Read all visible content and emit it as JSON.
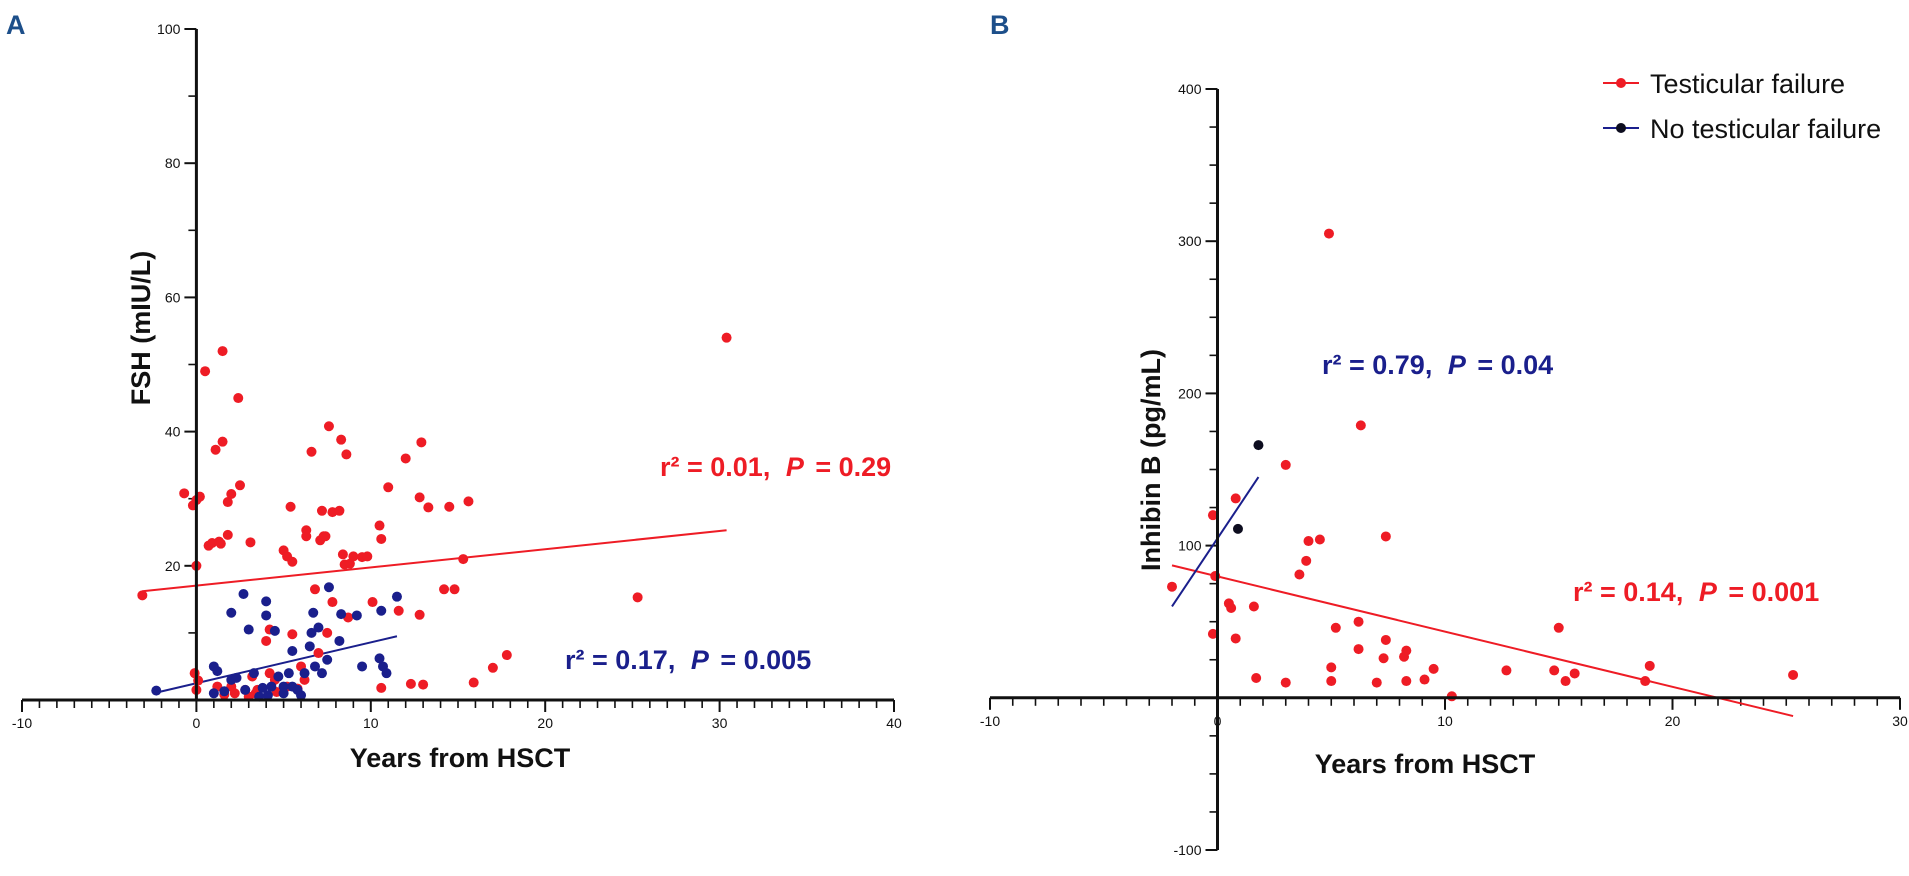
{
  "colors": {
    "testicular_failure": "#ee1c25",
    "no_testicular_failure_A": "#1a1f8c",
    "no_testicular_failure_B": "#0d0d1f",
    "panel_label": "#1d4f8a",
    "axis": "#111111"
  },
  "legend": {
    "entries": [
      "Testicular failure",
      "No testicular failure"
    ],
    "placement": "top-right"
  },
  "chart_data": [
    {
      "panel": "A",
      "type": "scatter",
      "title": "",
      "xlabel": "Years from HSCT",
      "ylabel": "FSH (mIU/L)",
      "xlim": [
        -10,
        40
      ],
      "ylim": [
        0,
        100
      ],
      "x_ticks": [
        -10,
        0,
        10,
        20,
        30,
        40
      ],
      "y_ticks": [
        20,
        40,
        60,
        80,
        100
      ],
      "series": [
        {
          "name": "Testicular failure",
          "color_key": "testicular_failure",
          "points": [
            [
              -3.1,
              15.6
            ],
            [
              -0.7,
              30.8
            ],
            [
              -0.2,
              29
            ],
            [
              0,
              29.8
            ],
            [
              0.2,
              30.3
            ],
            [
              0,
              20.0
            ],
            [
              -0.1,
              4.0
            ],
            [
              0.1,
              2.9
            ],
            [
              0,
              1.5
            ],
            [
              0.5,
              49
            ],
            [
              0.7,
              23
            ],
            [
              0.9,
              23.4
            ],
            [
              1.1,
              37.3
            ],
            [
              1.3,
              23.6
            ],
            [
              1.4,
              23.3
            ],
            [
              1.2,
              2.0
            ],
            [
              1.5,
              38.5
            ],
            [
              1.5,
              52
            ],
            [
              1.6,
              0.8
            ],
            [
              1.8,
              24.6
            ],
            [
              1.8,
              29.5
            ],
            [
              2.0,
              30.7
            ],
            [
              2.4,
              45
            ],
            [
              2.5,
              32.0
            ],
            [
              2.0,
              2.0
            ],
            [
              2.2,
              1.0
            ],
            [
              2.8,
              1.5
            ],
            [
              3.1,
              23.5
            ],
            [
              3.0,
              0.5
            ],
            [
              3.2,
              3.5
            ],
            [
              3.4,
              1.0
            ],
            [
              3.5,
              1.5
            ],
            [
              4.0,
              8.8
            ],
            [
              4.2,
              10.5
            ],
            [
              4.2,
              4.0
            ],
            [
              4.5,
              3.0
            ],
            [
              4.6,
              1.2
            ],
            [
              5.0,
              22.3
            ],
            [
              5.2,
              21.4
            ],
            [
              5.2,
              2.0
            ],
            [
              5.4,
              28.8
            ],
            [
              5.5,
              20.6
            ],
            [
              5.5,
              9.8
            ],
            [
              5.8,
              1.7
            ],
            [
              6.0,
              5.0
            ],
            [
              6.2,
              3.0
            ],
            [
              6.3,
              24.4
            ],
            [
              6.3,
              25.3
            ],
            [
              6.6,
              37.0
            ],
            [
              6.8,
              16.5
            ],
            [
              7.0,
              7.0
            ],
            [
              7.1,
              23.8
            ],
            [
              7.3,
              24.4
            ],
            [
              7.2,
              28.2
            ],
            [
              7.4,
              24.4
            ],
            [
              7.6,
              40.8
            ],
            [
              7.5,
              10.0
            ],
            [
              7.8,
              28
            ],
            [
              7.8,
              14.6
            ],
            [
              8.2,
              28.2
            ],
            [
              8.3,
              38.8
            ],
            [
              8.4,
              21.7
            ],
            [
              8.5,
              20.2
            ],
            [
              8.6,
              36.6
            ],
            [
              8.7,
              12.3
            ],
            [
              8.8,
              20.3
            ],
            [
              9.0,
              21.4
            ],
            [
              9.5,
              21.3
            ],
            [
              9.8,
              21.4
            ],
            [
              10.1,
              14.6
            ],
            [
              10.5,
              26.0
            ],
            [
              10.6,
              24.0
            ],
            [
              10.6,
              1.8
            ],
            [
              11.0,
              31.7
            ],
            [
              11.6,
              13.3
            ],
            [
              12.0,
              36.0
            ],
            [
              12.3,
              2.4
            ],
            [
              12.8,
              30.2
            ],
            [
              12.9,
              38.4
            ],
            [
              12.8,
              12.7
            ],
            [
              13.0,
              2.3
            ],
            [
              13.3,
              28.7
            ],
            [
              14.2,
              16.5
            ],
            [
              14.5,
              28.8
            ],
            [
              14.8,
              16.5
            ],
            [
              15.3,
              21.0
            ],
            [
              15.6,
              29.6
            ],
            [
              15.9,
              2.6
            ],
            [
              17.0,
              4.8
            ],
            [
              17.8,
              6.7
            ],
            [
              25.3,
              15.3
            ],
            [
              30.4,
              54
            ]
          ]
        },
        {
          "name": "No testicular failure",
          "color_key": "no_testicular_failure_A",
          "points": [
            [
              -2.3,
              1.4
            ],
            [
              1.0,
              5.0
            ],
            [
              1.2,
              4.3
            ],
            [
              1.0,
              1.0
            ],
            [
              1.6,
              1.3
            ],
            [
              2.0,
              13.0
            ],
            [
              2.0,
              3.0
            ],
            [
              2.3,
              3.3
            ],
            [
              2.7,
              15.8
            ],
            [
              2.8,
              1.5
            ],
            [
              3.0,
              10.5
            ],
            [
              3.3,
              4.0
            ],
            [
              3.6,
              0.5
            ],
            [
              3.8,
              1.8
            ],
            [
              4.0,
              14.7
            ],
            [
              4.0,
              12.6
            ],
            [
              4.1,
              0.7
            ],
            [
              4.3,
              2.0
            ],
            [
              4.5,
              10.3
            ],
            [
              4.7,
              3.5
            ],
            [
              5.0,
              2.0
            ],
            [
              5.0,
              1.0
            ],
            [
              5.3,
              4.0
            ],
            [
              5.5,
              7.3
            ],
            [
              5.5,
              2.0
            ],
            [
              5.8,
              1.5
            ],
            [
              6.0,
              0.7
            ],
            [
              6.2,
              4.0
            ],
            [
              6.5,
              8.0
            ],
            [
              6.6,
              10.0
            ],
            [
              6.7,
              13.0
            ],
            [
              6.8,
              5.0
            ],
            [
              7.0,
              10.8
            ],
            [
              7.2,
              4.0
            ],
            [
              7.5,
              6.0
            ],
            [
              7.6,
              16.8
            ],
            [
              8.2,
              8.8
            ],
            [
              8.3,
              12.8
            ],
            [
              9.2,
              12.6
            ],
            [
              9.5,
              5.0
            ],
            [
              10.5,
              6.2
            ],
            [
              10.6,
              13.3
            ],
            [
              10.7,
              5.0
            ],
            [
              10.9,
              4.0
            ],
            [
              11.5,
              15.4
            ]
          ]
        }
      ],
      "regressions": [
        {
          "series": "Testicular failure",
          "x": [
            -3.1,
            30.4
          ],
          "y": [
            16.2,
            25.3
          ],
          "label_r2": "r² = 0.01,",
          "label_p_symbol": "P",
          "label_p_value": "= 0.29"
        },
        {
          "series": "No testicular failure",
          "x": [
            -2.3,
            11.5
          ],
          "y": [
            1.1,
            9.5
          ],
          "label_r2": "r² = 0.17,",
          "label_p_symbol": "P",
          "label_p_value": "= 0.005"
        }
      ]
    },
    {
      "panel": "B",
      "type": "scatter",
      "title": "",
      "xlabel": "Years from HSCT",
      "ylabel": "Inhibin B (pg/mL)",
      "xlim": [
        -10,
        30
      ],
      "ylim": [
        -100,
        400
      ],
      "x_ticks": [
        -10,
        0,
        10,
        20,
        30
      ],
      "y_ticks": [
        -100,
        100,
        200,
        300,
        400
      ],
      "series": [
        {
          "name": "Testicular failure",
          "color_key": "testicular_failure",
          "points": [
            [
              -2.0,
              73
            ],
            [
              -0.2,
              120
            ],
            [
              -0.1,
              80
            ],
            [
              -0.2,
              42
            ],
            [
              0.5,
              62
            ],
            [
              0.6,
              59
            ],
            [
              0.8,
              131
            ],
            [
              0.8,
              39
            ],
            [
              1.6,
              60
            ],
            [
              1.7,
              13
            ],
            [
              3.0,
              153
            ],
            [
              3.0,
              10
            ],
            [
              3.6,
              81
            ],
            [
              3.9,
              90
            ],
            [
              4.0,
              103
            ],
            [
              4.5,
              104
            ],
            [
              4.9,
              305
            ],
            [
              5.0,
              20
            ],
            [
              5.0,
              11
            ],
            [
              5.2,
              46
            ],
            [
              6.2,
              50
            ],
            [
              6.3,
              179
            ],
            [
              6.2,
              32
            ],
            [
              7.0,
              10
            ],
            [
              7.3,
              26
            ],
            [
              7.4,
              106
            ],
            [
              7.4,
              38
            ],
            [
              8.2,
              27
            ],
            [
              8.3,
              31
            ],
            [
              8.3,
              11
            ],
            [
              9.1,
              12
            ],
            [
              9.5,
              19
            ],
            [
              10.3,
              1
            ],
            [
              12.7,
              18
            ],
            [
              14.8,
              18
            ],
            [
              15.0,
              46
            ],
            [
              15.3,
              11
            ],
            [
              15.7,
              16
            ],
            [
              18.8,
              11
            ],
            [
              19.0,
              21
            ],
            [
              25.3,
              15
            ]
          ]
        },
        {
          "name": "No testicular failure",
          "color_key": "no_testicular_failure_B",
          "points": [
            [
              0.9,
              111
            ],
            [
              1.8,
              166
            ]
          ]
        }
      ],
      "regressions": [
        {
          "series": "Testicular failure",
          "x": [
            -2.0,
            25.3
          ],
          "y": [
            87,
            -12
          ],
          "label_r2": "r² = 0.14,",
          "label_p_symbol": "P",
          "label_p_value": "= 0.001"
        },
        {
          "series": "No testicular failure",
          "x": [
            -2.0,
            1.8
          ],
          "y": [
            60,
            145
          ],
          "label_r2": "r² = 0.79,",
          "label_p_symbol": "P",
          "label_p_value": "= 0.04"
        }
      ]
    }
  ]
}
